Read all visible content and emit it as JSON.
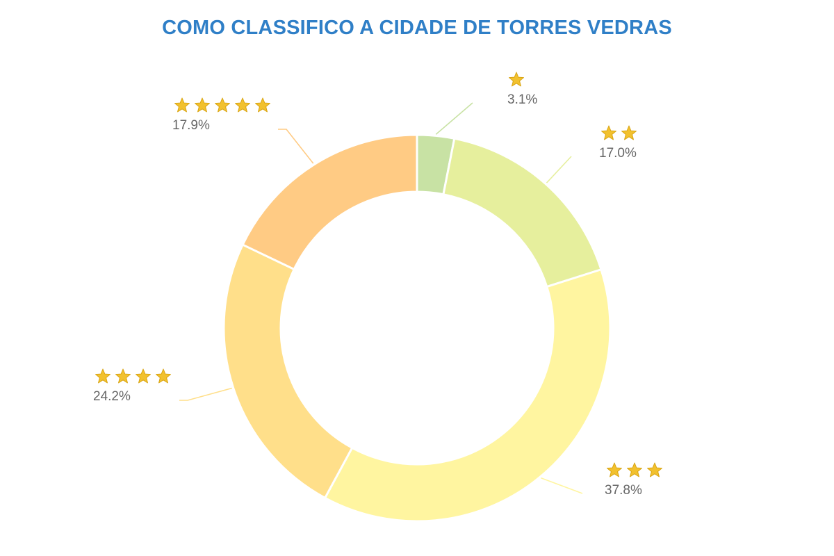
{
  "chart_data": {
    "type": "pie",
    "variant": "donut",
    "title": "COMO CLASSIFICO A CIDADE DE TORRES VEDRAS",
    "title_color": "#2f7fc7",
    "categories": [
      "1 estrela",
      "2 estrelas",
      "3 estrelas",
      "4 estrelas",
      "5 estrelas"
    ],
    "stars": [
      1,
      2,
      3,
      4,
      5
    ],
    "values": [
      3.1,
      17.0,
      37.8,
      24.2,
      17.9
    ],
    "value_labels": [
      "3.1%",
      "17.0%",
      "37.8%",
      "24.2%",
      "17.9%"
    ],
    "colors": [
      "#c8e2a4",
      "#e6ef9d",
      "#fff5a0",
      "#ffdf8a",
      "#ffcb84"
    ],
    "star_color": "#f2c12e",
    "label_color": "#666666",
    "legend": "none",
    "start_angle_deg": 0,
    "direction": "clockwise"
  }
}
